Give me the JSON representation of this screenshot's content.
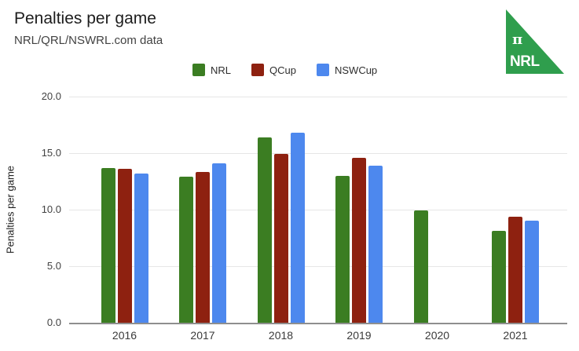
{
  "header": {
    "title": "Penalties per game",
    "subtitle": "NRL/QRL/NSWRL.com data"
  },
  "logo": {
    "pi_symbol": "π",
    "label": "NRL",
    "color": "#2f9e4d",
    "text_color": "#ffffff"
  },
  "legend": [
    {
      "label": "NRL",
      "color": "#3b7d22"
    },
    {
      "label": "QCup",
      "color": "#8e2110"
    },
    {
      "label": "NSWCup",
      "color": "#4d88ee"
    }
  ],
  "chart_data": {
    "type": "bar",
    "title": "Penalties per game",
    "subtitle": "NRL/QRL/NSWRL.com data",
    "xlabel": "",
    "ylabel": "Penalties per game",
    "ylim": [
      0,
      20
    ],
    "yticks": [
      "0.0",
      "5.0",
      "10.0",
      "15.0",
      "20.0"
    ],
    "grid": true,
    "legend_position": "top",
    "categories": [
      "2016",
      "2017",
      "2018",
      "2019",
      "2020",
      "2021"
    ],
    "series": [
      {
        "name": "NRL",
        "color": "#3b7d22",
        "values": [
          13.7,
          12.9,
          16.4,
          13.0,
          9.9,
          8.1
        ]
      },
      {
        "name": "QCup",
        "color": "#8e2110",
        "values": [
          13.6,
          13.3,
          14.9,
          14.6,
          null,
          9.4
        ]
      },
      {
        "name": "NSWCup",
        "color": "#4d88ee",
        "values": [
          13.2,
          14.1,
          16.8,
          13.9,
          null,
          9.0
        ]
      }
    ]
  }
}
